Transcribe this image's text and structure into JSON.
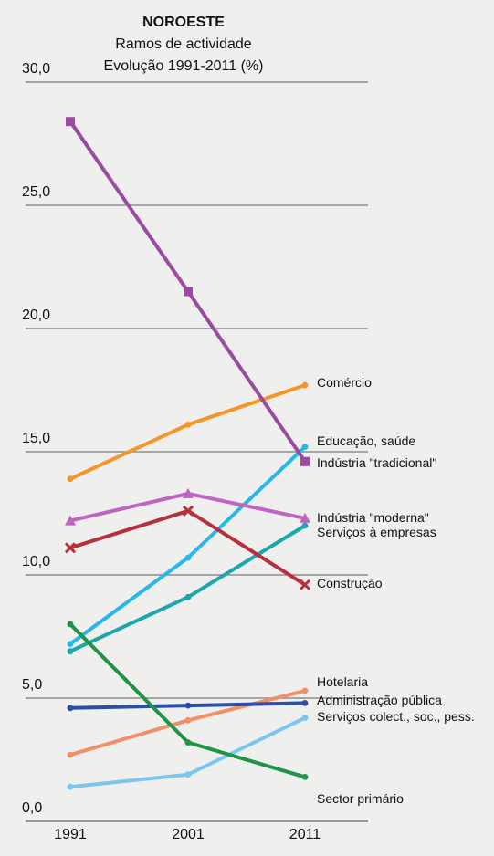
{
  "chart_data": {
    "type": "line",
    "title": "NOROESTE",
    "subtitle_lines": [
      "Ramos de actividade",
      "Evolução 1991-2011 (%)"
    ],
    "xlabel": "",
    "ylabel": "",
    "x": [
      "1991",
      "2001",
      "2011"
    ],
    "ylim": [
      0,
      30
    ],
    "yticks": [
      "0,0",
      "5,0",
      "10,0",
      "15,0",
      "20,0",
      "25,0",
      "30,0"
    ],
    "grid": true,
    "series": [
      {
        "name": "Comércio",
        "values": [
          13.9,
          16.1,
          17.7
        ],
        "color": "#f3952b",
        "marker": "circle"
      },
      {
        "name": "Educação, saúde",
        "values": [
          7.2,
          10.7,
          15.2
        ],
        "color": "#28b7ea",
        "marker": "circle"
      },
      {
        "name": "Indústria \"tradicional\"",
        "values": [
          28.4,
          21.5,
          14.6
        ],
        "color": "#9b4aa1",
        "marker": "square"
      },
      {
        "name": "Indústria \"moderna\"",
        "values": [
          12.2,
          13.3,
          12.3
        ],
        "color": "#bf64c1",
        "marker": "triangle"
      },
      {
        "name": "Serviços à empresas",
        "values": [
          6.9,
          9.1,
          12.0
        ],
        "color": "#1ba7ab",
        "marker": "circle"
      },
      {
        "name": "Construção",
        "values": [
          11.1,
          12.6,
          9.6
        ],
        "color": "#b7303d",
        "marker": "x"
      },
      {
        "name": "Hotelaria",
        "values": [
          2.7,
          4.1,
          5.3
        ],
        "color": "#f18f69",
        "marker": "circle"
      },
      {
        "name": "Administração pública",
        "values": [
          4.6,
          4.7,
          4.8
        ],
        "color": "#2c4ea4",
        "marker": "circle"
      },
      {
        "name": "Serviços colect., soc., pess.",
        "values": [
          1.4,
          1.9,
          4.2
        ],
        "color": "#7cc5f1",
        "marker": "circle"
      },
      {
        "name": "Sector primário",
        "values": [
          8.0,
          3.2,
          1.8
        ],
        "color": "#1f9446",
        "marker": "circle"
      }
    ],
    "label_positions": [
      {
        "series": "Comércio",
        "position": "right"
      },
      {
        "series": "Educação, saúde",
        "position": "right"
      },
      {
        "series": "Indústria \"tradicional\"",
        "position": "right"
      },
      {
        "series": "Indústria \"moderna\"",
        "position": "right"
      },
      {
        "series": "Serviços à empresas",
        "position": "right"
      },
      {
        "series": "Construção",
        "position": "right"
      },
      {
        "series": "Hotelaria",
        "position": "right"
      },
      {
        "series": "Administração pública",
        "position": "right"
      },
      {
        "series": "Serviços colect., soc., pess.",
        "position": "right"
      },
      {
        "series": "Sector primário",
        "position": "right"
      }
    ]
  }
}
